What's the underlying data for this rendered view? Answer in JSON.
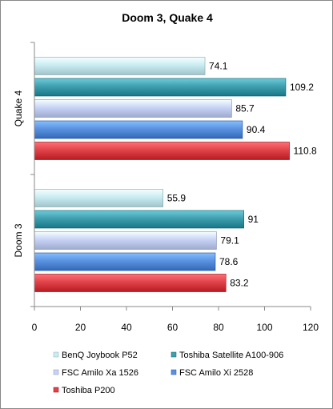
{
  "chart_data": {
    "type": "bar",
    "orientation": "horizontal",
    "title": "Doom 3, Quake 4",
    "categories": [
      "Quake 4",
      "Doom 3"
    ],
    "series": [
      {
        "name": "BenQ Joybook P52",
        "values": [
          74.1,
          55.9
        ],
        "color": "#c8ecf2"
      },
      {
        "name": "Toshiba Satellite A100-906",
        "values": [
          109.2,
          91
        ],
        "color": "#3f9fae"
      },
      {
        "name": "FSC Amilo Xa 1526",
        "values": [
          85.7,
          79.1
        ],
        "color": "#c7d3f6"
      },
      {
        "name": "FSC Amilo Xi 2528",
        "values": [
          90.4,
          78.6
        ],
        "color": "#5a92e0"
      },
      {
        "name": "Toshiba P200",
        "values": [
          110.8,
          83.2
        ],
        "color": "#e0434a"
      }
    ],
    "xlim": [
      0,
      120
    ],
    "xticks": [
      0,
      20,
      40,
      60,
      80,
      100,
      120
    ],
    "grid": false,
    "legend_position": "bottom"
  }
}
